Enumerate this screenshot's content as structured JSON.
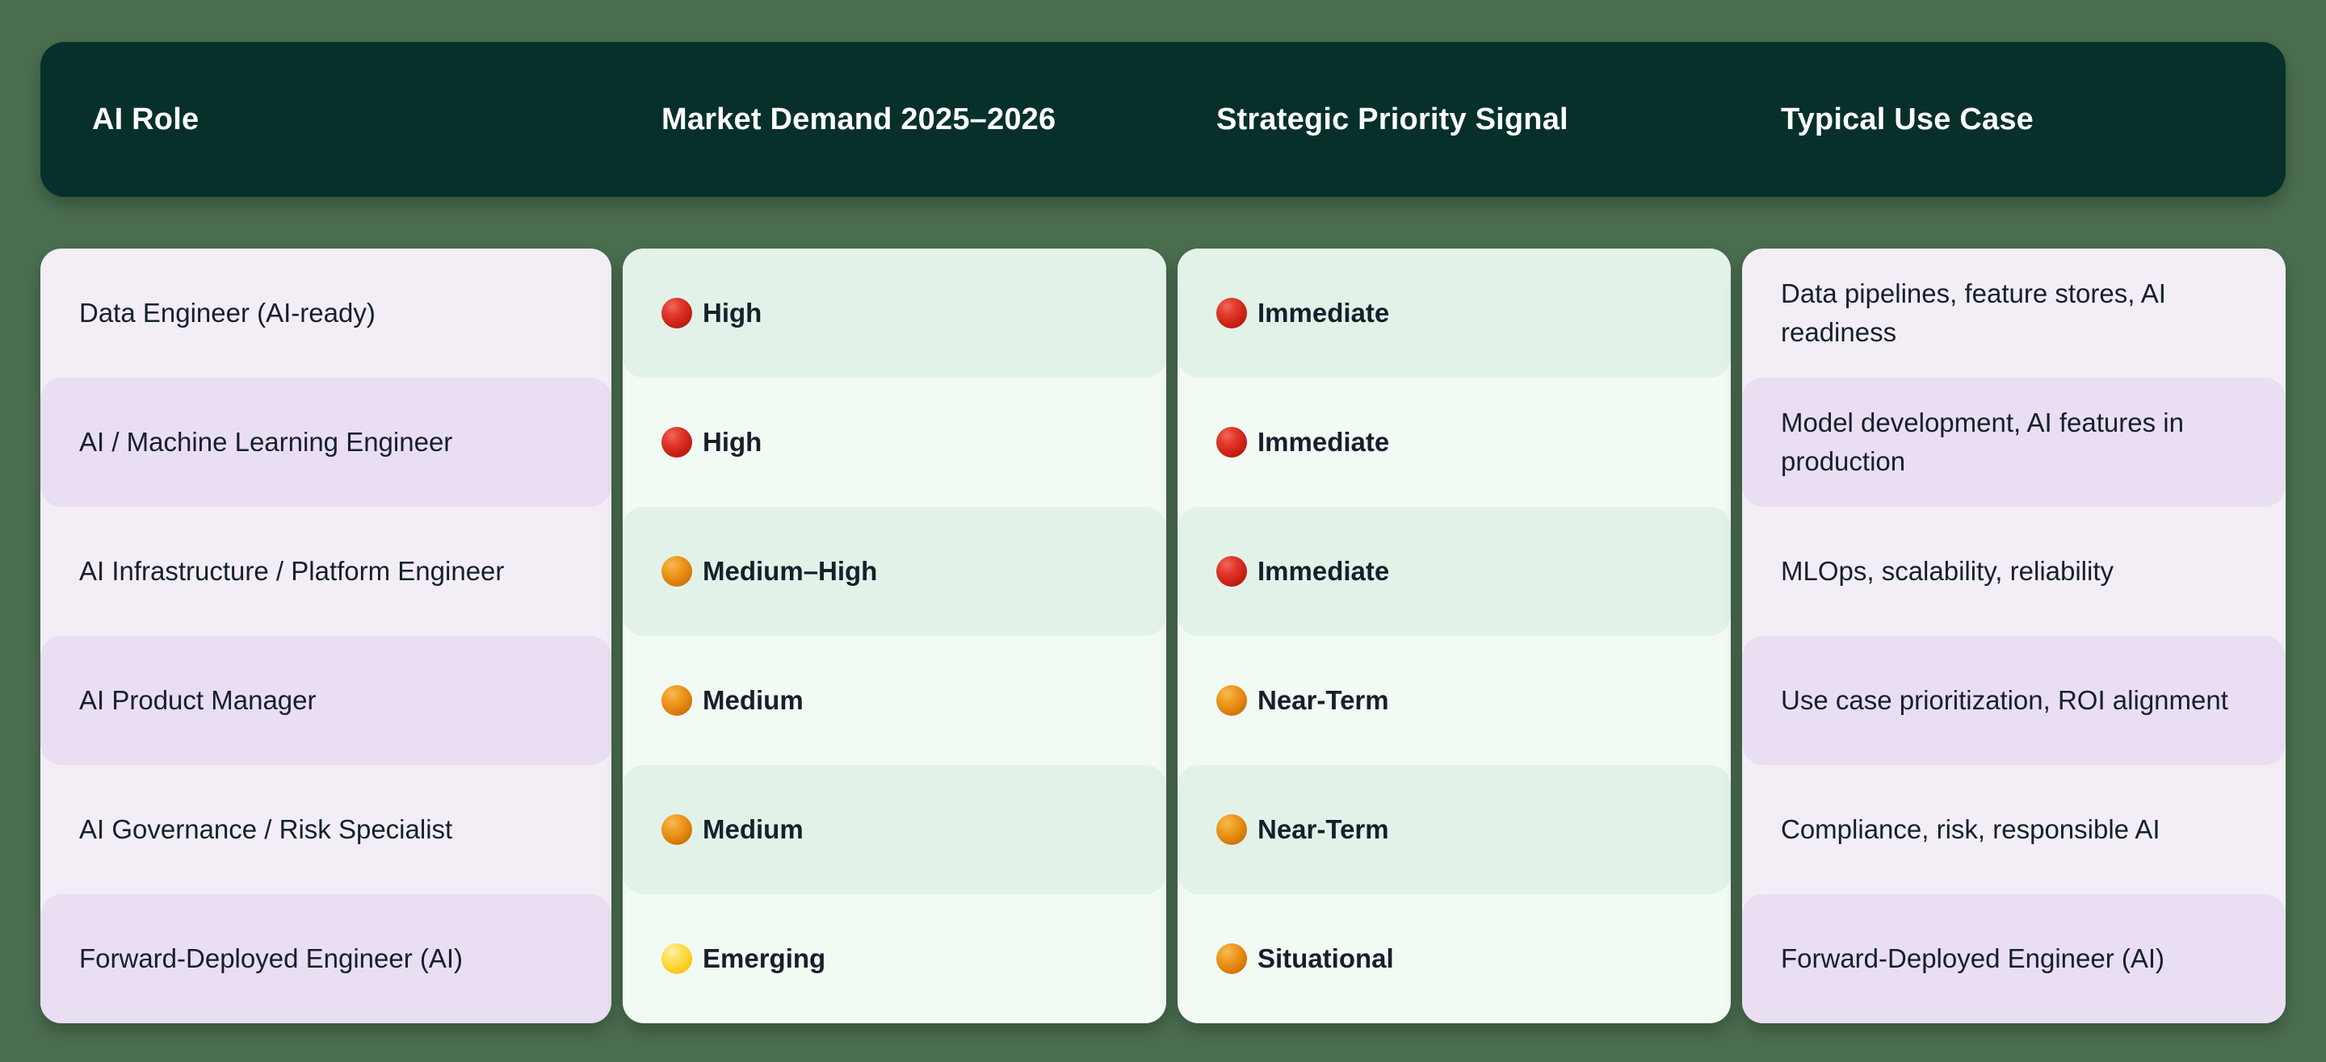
{
  "theme": {
    "page_bg": "#4b6e50",
    "header_bg": "#07302b",
    "header_text": "#ffffff",
    "pink_light": "#f3eef6",
    "pink_dark": "#eadef2",
    "mint_light": "#f2faf4",
    "mint_dark": "#e3f2e8",
    "text": "#15202b"
  },
  "chart_data": {
    "type": "table",
    "columns": [
      "AI Role",
      "Market Demand 2025–2026",
      "Strategic Priority Signal",
      "Typical Use Case"
    ],
    "dot_colors": {
      "red": "#cf2318",
      "orange": "#e0810d",
      "yellow": "#fbcf1f"
    },
    "rows": [
      {
        "role": "Data Engineer (AI-ready)",
        "market_demand": {
          "dot": "red",
          "label": "High"
        },
        "strategic_priority": {
          "dot": "red",
          "label": "Immediate"
        },
        "typical_use_case": "Data pipelines, feature stores, AI readiness"
      },
      {
        "role": "AI / Machine Learning Engineer",
        "market_demand": {
          "dot": "red",
          "label": "High"
        },
        "strategic_priority": {
          "dot": "red",
          "label": "Immediate"
        },
        "typical_use_case": "Model development, AI features in production"
      },
      {
        "role": "AI Infrastructure / Platform Engineer",
        "market_demand": {
          "dot": "orange",
          "label": "Medium–High"
        },
        "strategic_priority": {
          "dot": "red",
          "label": "Immediate"
        },
        "typical_use_case": "MLOps, scalability, reliability"
      },
      {
        "role": "AI Product Manager",
        "market_demand": {
          "dot": "orange",
          "label": "Medium"
        },
        "strategic_priority": {
          "dot": "orange",
          "label": "Near-Term"
        },
        "typical_use_case": "Use case prioritization, ROI alignment"
      },
      {
        "role": "AI Governance / Risk Specialist",
        "market_demand": {
          "dot": "orange",
          "label": "Medium"
        },
        "strategic_priority": {
          "dot": "orange",
          "label": "Near-Term"
        },
        "typical_use_case": "Compliance, risk, responsible AI"
      },
      {
        "role": "Forward-Deployed Engineer (AI)",
        "market_demand": {
          "dot": "yellow",
          "label": "Emerging"
        },
        "strategic_priority": {
          "dot": "orange",
          "label": "Situational"
        },
        "typical_use_case": "Forward-Deployed Engineer (AI)"
      }
    ]
  }
}
